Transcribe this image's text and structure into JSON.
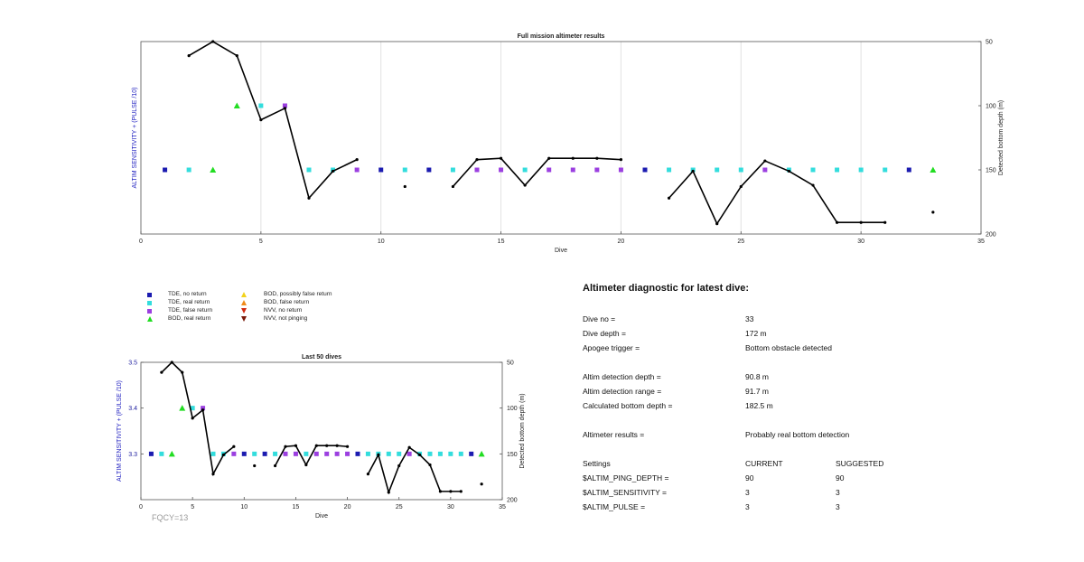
{
  "chart_data": [
    {
      "type": "scatter",
      "title": "Full mission altimeter results",
      "xlabel": "Dive",
      "ylabel_left": "ALTIM SENSITIVITY + (PULSE /10)",
      "ylabel_right": "Detected bottom depth (m)",
      "xlim": [
        0,
        35
      ],
      "ylim_right": [
        200,
        50
      ],
      "xticks": [
        "0",
        "5",
        "10",
        "15",
        "20",
        "25",
        "30",
        "35"
      ],
      "yticks_right": [
        "50",
        "100",
        "150",
        "200"
      ],
      "grid": "vertical",
      "series": [
        {
          "name": "TDE, no return",
          "marker": "square",
          "color": "#1b1bb0",
          "points": [
            [
              1,
              150
            ],
            [
              10,
              150
            ],
            [
              12,
              150
            ],
            [
              21,
              150
            ],
            [
              32,
              150
            ]
          ]
        },
        {
          "name": "TDE, real return",
          "marker": "square",
          "color": "#33dddd",
          "points": [
            [
              2,
              150
            ],
            [
              5,
              100
            ],
            [
              7,
              150
            ],
            [
              8,
              150
            ],
            [
              11,
              150
            ],
            [
              13,
              150
            ],
            [
              16,
              150
            ],
            [
              22,
              150
            ],
            [
              23,
              150
            ],
            [
              24,
              150
            ],
            [
              25,
              150
            ],
            [
              27,
              150
            ],
            [
              28,
              150
            ],
            [
              29,
              150
            ],
            [
              30,
              150
            ],
            [
              31,
              150
            ]
          ]
        },
        {
          "name": "TDE, false return",
          "marker": "square",
          "color": "#9b3fe0",
          "points": [
            [
              6,
              100
            ],
            [
              9,
              150
            ],
            [
              14,
              150
            ],
            [
              15,
              150
            ],
            [
              17,
              150
            ],
            [
              18,
              150
            ],
            [
              19,
              150
            ],
            [
              20,
              150
            ],
            [
              26,
              150
            ]
          ]
        },
        {
          "name": "BOD, real return",
          "marker": "triangle",
          "color": "#22dd22",
          "points": [
            [
              3,
              150
            ],
            [
              4,
              100
            ],
            [
              33,
              150
            ]
          ]
        },
        {
          "name": "Detected bottom depth",
          "marker": "dot",
          "color": "#000000",
          "segments": [
            [
              [
                2,
                61
              ],
              [
                3,
                50
              ],
              [
                4,
                61
              ],
              [
                5,
                111
              ],
              [
                6,
                102
              ],
              [
                7,
                172
              ],
              [
                8,
                151
              ],
              [
                9,
                142
              ]
            ],
            [
              [
                11,
                163
              ]
            ],
            [
              [
                13,
                163
              ],
              [
                14,
                142
              ],
              [
                15,
                141
              ],
              [
                16,
                162
              ],
              [
                17,
                141
              ],
              [
                18,
                141
              ],
              [
                19,
                141
              ],
              [
                20,
                142
              ]
            ],
            [
              [
                22,
                172
              ],
              [
                23,
                151
              ],
              [
                24,
                192
              ],
              [
                25,
                163
              ],
              [
                26,
                143
              ],
              [
                27,
                151
              ],
              [
                28,
                162
              ],
              [
                29,
                191
              ],
              [
                30,
                191
              ],
              [
                31,
                191
              ]
            ],
            [
              [
                33,
                183
              ]
            ]
          ]
        }
      ]
    },
    {
      "type": "scatter",
      "title": "Last 50 dives",
      "xlabel": "Dive",
      "ylabel_left": "ALTIM SENSITIVITY + (PULSE /10)",
      "ylabel_right": "Detected bottom depth (m)",
      "xlim": [
        0,
        35
      ],
      "ylim_left": [
        3.2,
        3.5
      ],
      "ylim_right": [
        200,
        50
      ],
      "xticks": [
        "0",
        "5",
        "10",
        "15",
        "20",
        "25",
        "30",
        "35"
      ],
      "yticks_left": [
        "3.3",
        "3.4",
        "3.5"
      ],
      "yticks_right": [
        "50",
        "100",
        "150",
        "200"
      ],
      "grid": "none",
      "series": [
        {
          "name": "TDE, no return",
          "marker": "square",
          "color": "#1b1bb0",
          "points": [
            [
              1,
              150
            ],
            [
              10,
              150
            ],
            [
              12,
              150
            ],
            [
              21,
              150
            ],
            [
              32,
              150
            ]
          ]
        },
        {
          "name": "TDE, real return",
          "marker": "square",
          "color": "#33dddd",
          "points": [
            [
              2,
              150
            ],
            [
              5,
              100
            ],
            [
              7,
              150
            ],
            [
              8,
              150
            ],
            [
              11,
              150
            ],
            [
              13,
              150
            ],
            [
              16,
              150
            ],
            [
              22,
              150
            ],
            [
              23,
              150
            ],
            [
              24,
              150
            ],
            [
              25,
              150
            ],
            [
              27,
              150
            ],
            [
              28,
              150
            ],
            [
              29,
              150
            ],
            [
              30,
              150
            ],
            [
              31,
              150
            ]
          ]
        },
        {
          "name": "TDE, false return",
          "marker": "square",
          "color": "#9b3fe0",
          "points": [
            [
              6,
              100
            ],
            [
              9,
              150
            ],
            [
              14,
              150
            ],
            [
              15,
              150
            ],
            [
              17,
              150
            ],
            [
              18,
              150
            ],
            [
              19,
              150
            ],
            [
              20,
              150
            ],
            [
              26,
              150
            ]
          ]
        },
        {
          "name": "BOD, real return",
          "marker": "triangle",
          "color": "#22dd22",
          "points": [
            [
              3,
              150
            ],
            [
              4,
              100
            ],
            [
              33,
              150
            ]
          ]
        },
        {
          "name": "Detected bottom depth",
          "marker": "dot",
          "color": "#000000",
          "segments": [
            [
              [
                2,
                61
              ],
              [
                3,
                50
              ],
              [
                4,
                61
              ],
              [
                5,
                111
              ],
              [
                6,
                102
              ],
              [
                7,
                172
              ],
              [
                8,
                151
              ],
              [
                9,
                142
              ]
            ],
            [
              [
                11,
                163
              ]
            ],
            [
              [
                13,
                163
              ],
              [
                14,
                142
              ],
              [
                15,
                141
              ],
              [
                16,
                162
              ],
              [
                17,
                141
              ],
              [
                18,
                141
              ],
              [
                19,
                141
              ],
              [
                20,
                142
              ]
            ],
            [
              [
                22,
                172
              ],
              [
                23,
                151
              ],
              [
                24,
                192
              ],
              [
                25,
                163
              ],
              [
                26,
                143
              ],
              [
                27,
                151
              ],
              [
                28,
                162
              ],
              [
                29,
                191
              ],
              [
                30,
                191
              ],
              [
                31,
                191
              ]
            ],
            [
              [
                33,
                183
              ]
            ]
          ]
        }
      ]
    }
  ],
  "legend": {
    "items": [
      {
        "label": "TDE, no return",
        "marker": "square",
        "color": "#1b1bb0"
      },
      {
        "label": "TDE, real return",
        "marker": "square",
        "color": "#33dddd"
      },
      {
        "label": "TDE, false return",
        "marker": "square",
        "color": "#9b3fe0"
      },
      {
        "label": "BOD, real return",
        "marker": "triangle-up",
        "color": "#22dd22"
      },
      {
        "label": "BOD, possibly false return",
        "marker": "triangle-up",
        "color": "#f2d21b"
      },
      {
        "label": "BOD, false return",
        "marker": "triangle-up",
        "color": "#f08c1a"
      },
      {
        "label": "NVV, no return",
        "marker": "triangle-down",
        "color": "#d22a10"
      },
      {
        "label": "NVV, not pinging",
        "marker": "triangle-down",
        "color": "#7a1a0a"
      }
    ]
  },
  "fqcy": "FQCY=13",
  "diagnostic": {
    "title": "Altimeter diagnostic for latest dive:",
    "dive_no_label": "Dive no =",
    "dive_no_value": "33",
    "dive_depth_label": "Dive depth =",
    "dive_depth_value": "172 m",
    "apogee_label": "Apogee trigger =",
    "apogee_value": "Bottom obstacle detected",
    "altim_det_depth_label": "Altim detection depth =",
    "altim_det_depth_value": "90.8 m",
    "altim_det_range_label": "Altim detection range =",
    "altim_det_range_value": "91.7 m",
    "calc_bottom_label": "Calculated bottom depth =",
    "calc_bottom_value": "182.5 m",
    "results_label": "Altimeter results =",
    "results_value": "Probably real bottom detection",
    "settings_label": "Settings",
    "current_label": "CURRENT",
    "suggested_label": "SUGGESTED",
    "ping_depth_label": "$ALTIM_PING_DEPTH =",
    "ping_depth_current": "90",
    "ping_depth_suggested": "90",
    "sensitivity_label": "$ALTIM_SENSITIVITY =",
    "sensitivity_current": "3",
    "sensitivity_suggested": "3",
    "pulse_label": "$ALTIM_PULSE =",
    "pulse_current": "3",
    "pulse_suggested": "3"
  }
}
